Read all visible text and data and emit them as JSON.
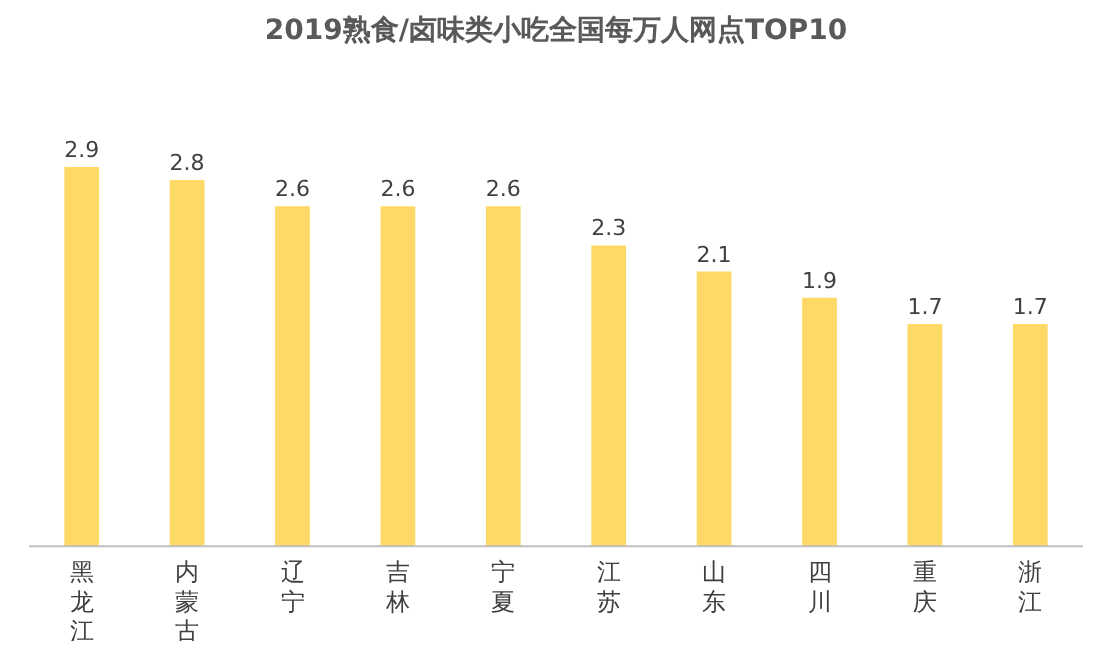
{
  "chart_data": {
    "type": "bar",
    "title": "2019熟食/卤味类小吃全国每万人网点TOP10",
    "categories": [
      "黑龙江",
      "内蒙古",
      "辽宁",
      "吉林",
      "宁夏",
      "江苏",
      "山东",
      "四川",
      "重庆",
      "浙江"
    ],
    "values": [
      2.9,
      2.8,
      2.6,
      2.6,
      2.6,
      2.3,
      2.1,
      1.9,
      1.7,
      1.7
    ],
    "color": "#ffd966",
    "data_labels": true
  }
}
